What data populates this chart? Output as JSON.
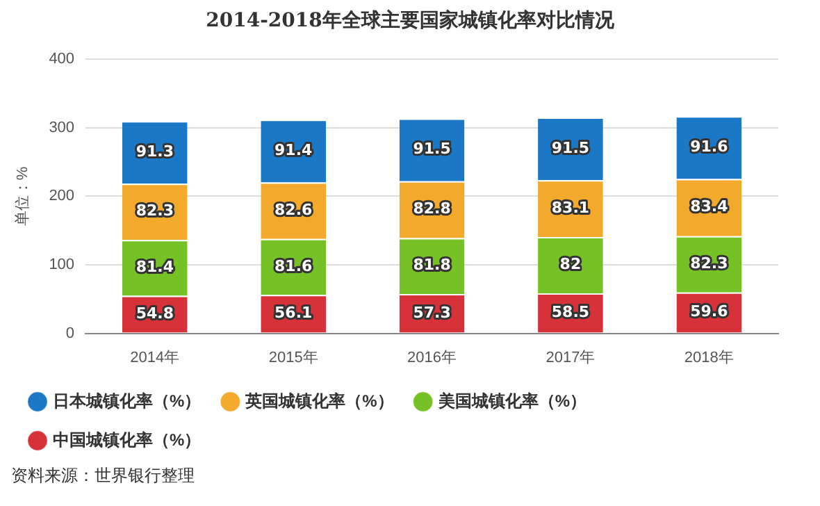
{
  "chart_data": {
    "type": "bar",
    "title": "2014-2018年全球主要国家城镇化率对比情况",
    "ylabel": "单位：%",
    "stacked": true,
    "categories": [
      "2014年",
      "2015年",
      "2016年",
      "2017年",
      "2018年"
    ],
    "series": [
      {
        "name": "中国城镇化率（%）",
        "color": "#d7323a",
        "values": [
          54.8,
          56.1,
          57.3,
          58.5,
          59.6
        ]
      },
      {
        "name": "美国城镇化率（%）",
        "color": "#76c125",
        "values": [
          81.4,
          81.6,
          81.8,
          82,
          82.3
        ]
      },
      {
        "name": "英国城镇化率（%）",
        "color": "#f2a92c",
        "values": [
          82.3,
          82.6,
          82.8,
          83.1,
          83.4
        ]
      },
      {
        "name": "日本城镇化率（%）",
        "color": "#1b78c6",
        "values": [
          91.3,
          91.4,
          91.5,
          91.5,
          91.6
        ]
      }
    ],
    "ylim": [
      0,
      400
    ],
    "yticks": [
      0,
      100,
      200,
      300,
      400
    ],
    "grid": "y",
    "legend": "bottom",
    "data_labels": true,
    "annotations": [
      "资料来源：世界银行整理"
    ]
  }
}
